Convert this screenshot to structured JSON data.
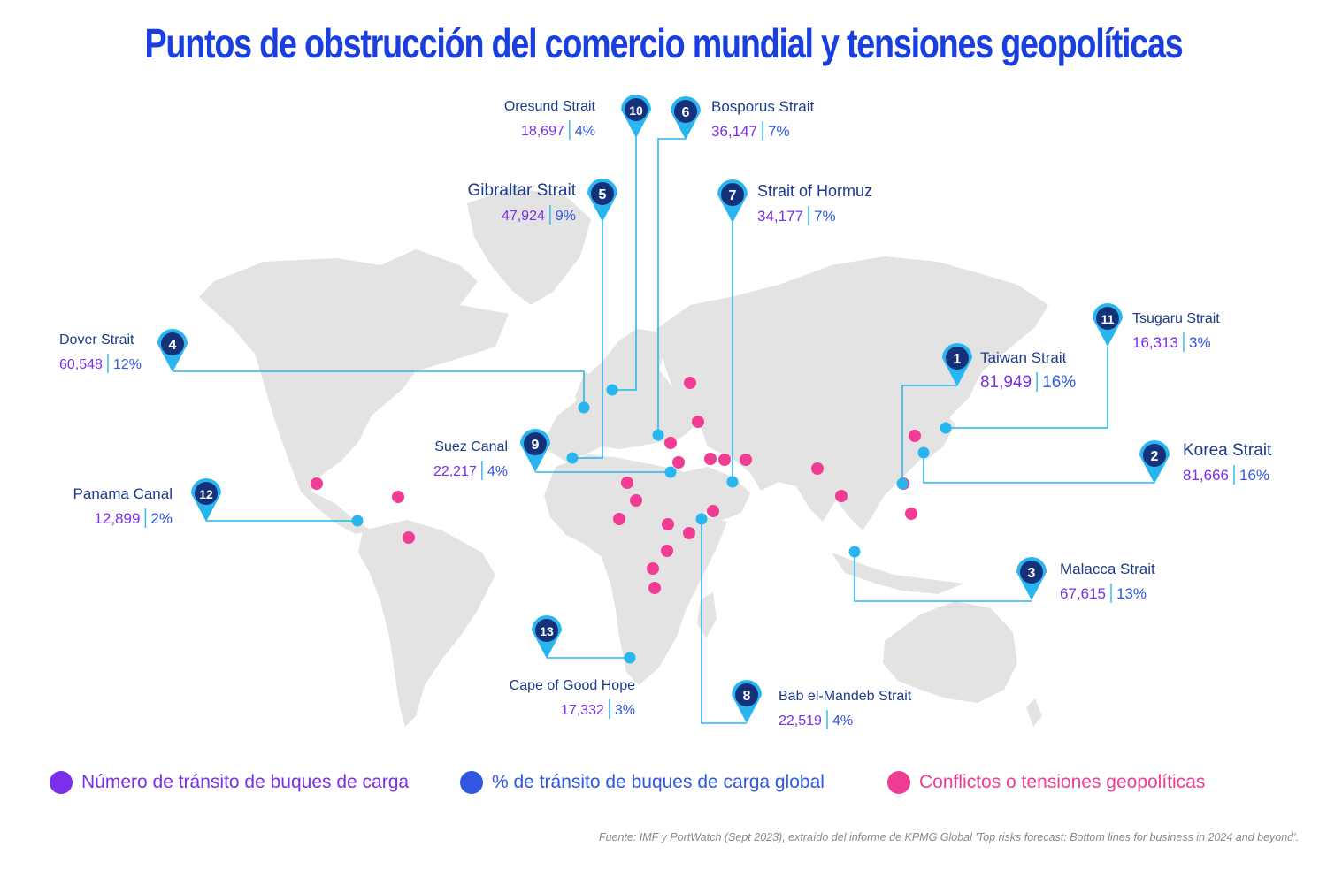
{
  "title": "Puntos de obstrucción del comercio mundial y tensiones geopolíticas",
  "colors": {
    "title": "#1a3fe0",
    "name": "#1e3a8a",
    "count": "#7b2fe8",
    "pct": "#2f57e4",
    "pin_outer": "#29b6f0",
    "pin_inner": "#15317a",
    "line": "#29b6f0",
    "conflict": "#f03c93",
    "land": "#e3e3e3"
  },
  "chokepoints": [
    {
      "num": "1",
      "name": "Taiwan Strait",
      "count": "81,949",
      "pct": "16%"
    },
    {
      "num": "2",
      "name": "Korea Strait",
      "count": "81,666",
      "pct": "16%"
    },
    {
      "num": "3",
      "name": "Malacca Strait",
      "count": "67,615",
      "pct": "13%"
    },
    {
      "num": "4",
      "name": "Dover Strait",
      "count": "60,548",
      "pct": "12%"
    },
    {
      "num": "5",
      "name": "Gibraltar Strait",
      "count": "47,924",
      "pct": "9%"
    },
    {
      "num": "6",
      "name": "Bosporus Strait",
      "count": "36,147",
      "pct": "7%"
    },
    {
      "num": "7",
      "name": "Strait of Hormuz",
      "count": "34,177",
      "pct": "7%"
    },
    {
      "num": "8",
      "name": "Bab el-Mandeb Strait",
      "count": "22,519",
      "pct": "4%"
    },
    {
      "num": "9",
      "name": "Suez Canal",
      "count": "22,217",
      "pct": "4%"
    },
    {
      "num": "10",
      "name": "Oresund Strait",
      "count": "18,697",
      "pct": "4%"
    },
    {
      "num": "11",
      "name": "Tsugaru Strait",
      "count": "16,313",
      "pct": "3%"
    },
    {
      "num": "12",
      "name": "Panama Canal",
      "count": "12,899",
      "pct": "2%"
    },
    {
      "num": "13",
      "name": "Cape of Good Hope",
      "count": "17,332",
      "pct": "3%"
    }
  ],
  "legend": {
    "count": "Número de tránsito de buques de carga",
    "pct": "% de tránsito de buques de carga global",
    "conflict": "Conflictos o tensiones geopolíticas"
  },
  "source": "Fuente: IMF y PortWatch (Sept 2023), extraído del informe de KPMG Global 'Top risks forecast: Bottom lines for business in 2024 and beyond'."
}
